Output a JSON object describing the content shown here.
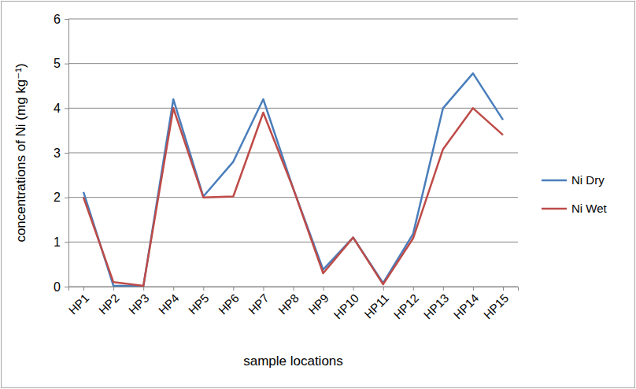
{
  "chart_data": {
    "type": "line",
    "x_label": "sample locations",
    "y_label": "concentrations of Ni (mg kg⁻¹)",
    "categories": [
      "HP1",
      "HP2",
      "HP3",
      "HP4",
      "HP5",
      "HP6",
      "HP7",
      "HP8",
      "HP9",
      "HP10",
      "HP11",
      "HP12",
      "HP13",
      "HP14",
      "HP15"
    ],
    "series": [
      {
        "name": "Ni Dry",
        "color": "#4a7ebb",
        "values": [
          2.12,
          0.02,
          0.01,
          4.2,
          2.02,
          2.8,
          4.2,
          2.2,
          0.38,
          1.1,
          0.08,
          1.18,
          4.0,
          4.78,
          3.74
        ]
      },
      {
        "name": "Ni Wet",
        "color": "#be4b48",
        "values": [
          2.0,
          0.1,
          0.02,
          4.0,
          2.0,
          2.02,
          3.9,
          2.2,
          0.3,
          1.1,
          0.05,
          1.08,
          3.08,
          4.0,
          3.4
        ]
      }
    ],
    "ylim": [
      0,
      6
    ],
    "yticks": [
      0,
      1,
      2,
      3,
      4,
      5,
      6
    ],
    "grid": true,
    "legend": "right"
  }
}
